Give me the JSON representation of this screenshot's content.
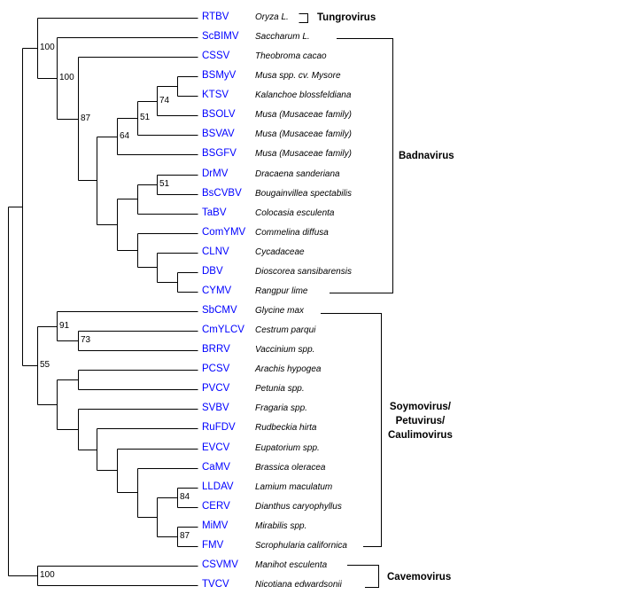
{
  "colors": {
    "leaf_label": "#0000ff",
    "line": "#000000"
  },
  "tree": {
    "children": [
      {
        "children": [
          {
            "support": "100",
            "children": [
              {
                "name": "RTBV",
                "host": "Oryza L."
              },
              {
                "support": "100",
                "children": [
                  {
                    "name": "ScBIMV",
                    "host": "Saccharum L."
                  },
                  {
                    "support": "87",
                    "children": [
                      {
                        "name": "CSSV",
                        "host": "Theobroma cacao"
                      },
                      {
                        "children": [
                          {
                            "support": "64",
                            "children": [
                              {
                                "support": "51",
                                "children": [
                                  {
                                    "support": "74",
                                    "children": [
                                      {
                                        "children": [
                                          {
                                            "name": "BSMyV",
                                            "host": "Musa spp. cv. Mysore"
                                          },
                                          {
                                            "name": "KTSV",
                                            "host": "Kalanchoe blossfeldiana"
                                          }
                                        ]
                                      },
                                      {
                                        "name": "BSOLV",
                                        "host": "Musa (Musaceae family)"
                                      }
                                    ]
                                  },
                                  {
                                    "name": "BSVAV",
                                    "host": "Musa (Musaceae family)"
                                  }
                                ]
                              },
                              {
                                "name": "BSGFV",
                                "host": "Musa (Musaceae family)"
                              }
                            ]
                          },
                          {
                            "children": [
                              {
                                "children": [
                                  {
                                    "support": "51",
                                    "children": [
                                      {
                                        "name": "DrMV",
                                        "host": "Dracaena sanderiana"
                                      },
                                      {
                                        "name": "BsCVBV",
                                        "host": "Bougainvillea spectabilis"
                                      }
                                    ]
                                  },
                                  {
                                    "name": "TaBV",
                                    "host": "Colocasia esculenta"
                                  }
                                ]
                              },
                              {
                                "children": [
                                  {
                                    "name": "ComYMV",
                                    "host": "Commelina diffusa"
                                  },
                                  {
                                    "children": [
                                      {
                                        "name": "CLNV",
                                        "host": "Cycadaceae"
                                      },
                                      {
                                        "children": [
                                          {
                                            "name": "DBV",
                                            "host": "Dioscorea sansibarensis"
                                          },
                                          {
                                            "name": "CYMV",
                                            "host": "Rangpur lime"
                                          }
                                        ]
                                      }
                                    ]
                                  }
                                ]
                              }
                            ]
                          }
                        ]
                      }
                    ]
                  }
                ]
              }
            ]
          },
          {
            "support": "55",
            "children": [
              {
                "support": "91",
                "children": [
                  {
                    "name": "SbCMV",
                    "host": "Glycine max"
                  },
                  {
                    "support": "73",
                    "children": [
                      {
                        "name": "CmYLCV",
                        "host": "Cestrum parqui"
                      },
                      {
                        "name": "BRRV",
                        "host": "Vaccinium spp."
                      }
                    ]
                  }
                ]
              },
              {
                "children": [
                  {
                    "children": [
                      {
                        "name": "PCSV",
                        "host": "Arachis hypogea"
                      },
                      {
                        "name": "PVCV",
                        "host": "Petunia spp."
                      }
                    ]
                  },
                  {
                    "children": [
                      {
                        "name": "SVBV",
                        "host": "Fragaria  spp."
                      },
                      {
                        "children": [
                          {
                            "name": "RuFDV",
                            "host": "Rudbeckia hirta"
                          },
                          {
                            "children": [
                              {
                                "name": "EVCV",
                                "host": "Eupatorium spp."
                              },
                              {
                                "children": [
                                  {
                                    "name": "CaMV",
                                    "host": "Brassica oleracea"
                                  },
                                  {
                                    "children": [
                                      {
                                        "support": "84",
                                        "children": [
                                          {
                                            "name": "LLDAV",
                                            "host": "Lamium maculatum"
                                          },
                                          {
                                            "name": "CERV",
                                            "host": "Dianthus caryophyllus"
                                          }
                                        ]
                                      },
                                      {
                                        "support": "87",
                                        "children": [
                                          {
                                            "name": "MiMV",
                                            "host": "Mirabilis spp."
                                          },
                                          {
                                            "name": "FMV",
                                            "host": "Scrophularia californica"
                                          }
                                        ]
                                      }
                                    ]
                                  }
                                ]
                              }
                            ]
                          }
                        ]
                      }
                    ]
                  }
                ]
              }
            ]
          }
        ]
      },
      {
        "support": "100",
        "children": [
          {
            "name": "CSVMV",
            "host": "Manihot esculenta"
          },
          {
            "name": "TVCV",
            "host": "Nicotiana edwardsonii"
          }
        ]
      }
    ]
  },
  "genera": {
    "tungrovirus": "Tungrovirus",
    "badnavirus": "Badnavirus",
    "soymovirus": [
      "Soymovirus/",
      "Petuvirus/",
      "Caulimovirus"
    ],
    "cavemovirus": "Cavemovirus"
  }
}
